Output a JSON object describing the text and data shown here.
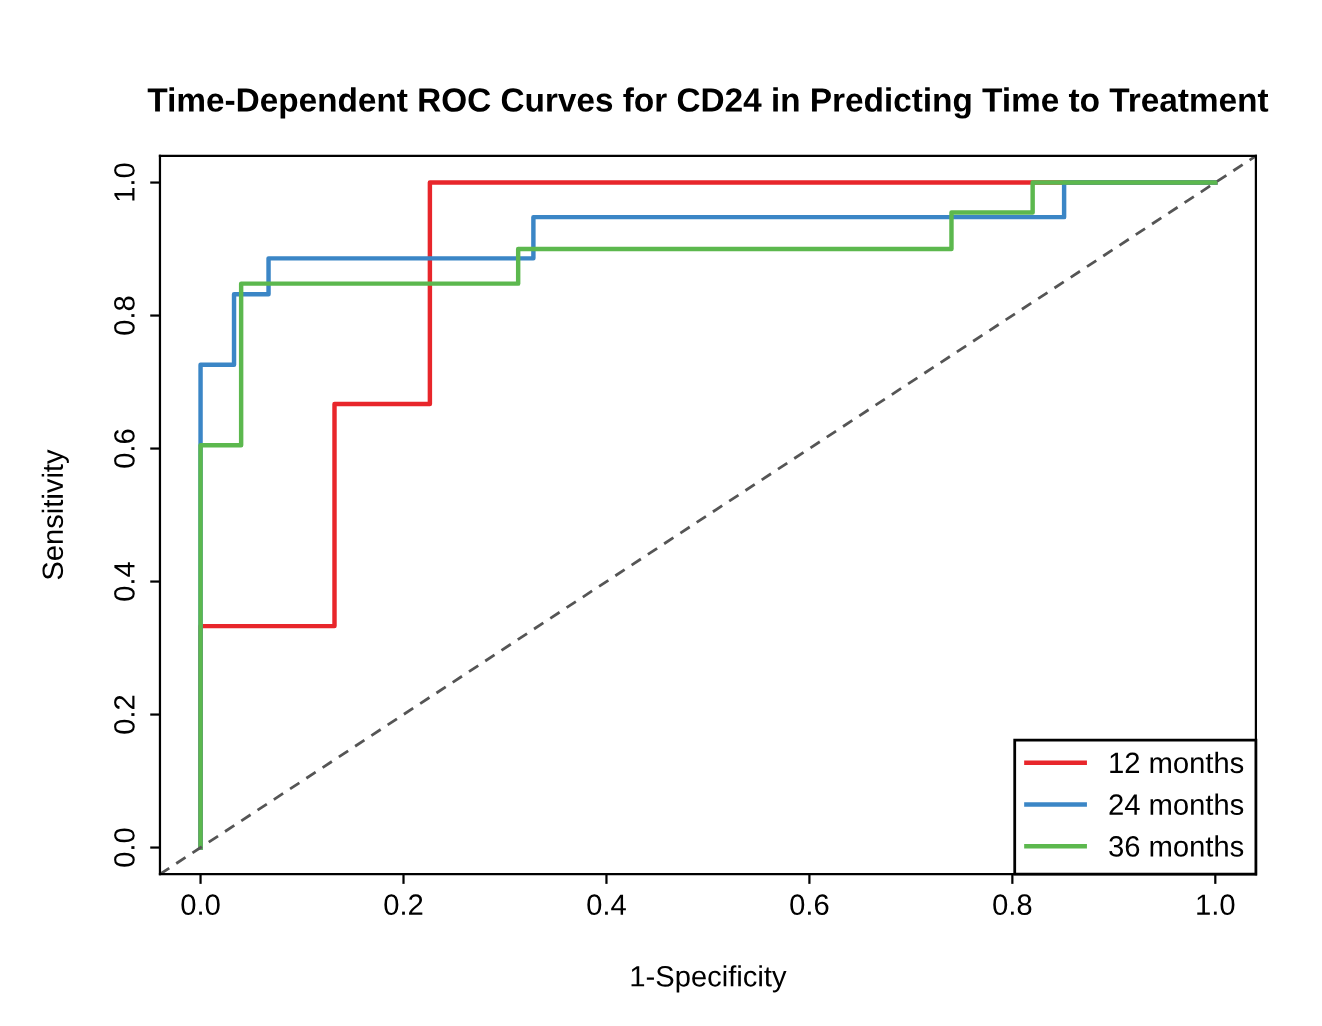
{
  "chart_data": {
    "type": "step",
    "title": "Time-Dependent ROC Curves for CD24 in Predicting Time to Treatment",
    "xlabel": "1-Specificity",
    "ylabel": "Sensitivity",
    "series": [
      {
        "name": "12 months",
        "color": "#e8262b",
        "x": [
          0,
          0,
          0.132,
          0.226,
          1.0
        ],
        "values": [
          0,
          0.333,
          0.667,
          1.0,
          1.0
        ]
      },
      {
        "name": "24 months",
        "color": "#3b86c6",
        "x": [
          0,
          0,
          0.033,
          0.067,
          0.328,
          0.851,
          1.0
        ],
        "values": [
          0,
          0.726,
          0.832,
          0.886,
          0.948,
          1.0,
          1.0
        ]
      },
      {
        "name": "36 months",
        "color": "#5cb84e",
        "x": [
          0,
          0,
          0.04,
          0.313,
          0.74,
          0.82,
          1.0
        ],
        "values": [
          0,
          0.605,
          0.848,
          0.9,
          0.955,
          1.0,
          1.0
        ]
      },
      {
        "type": "line",
        "color": "#555555",
        "line_style": "dashed",
        "x": [
          -0.04,
          1.04
        ],
        "values": [
          -0.04,
          1.04
        ]
      }
    ],
    "xlim": [
      -0.04,
      1.04
    ],
    "ylim": [
      -0.04,
      1.04
    ],
    "xticks": [
      {
        "value": 0,
        "label": "0.0"
      },
      0.2,
      0.4,
      0.6,
      0.8,
      {
        "value": 1,
        "label": "1.0"
      }
    ],
    "yticks": [
      {
        "value": 0,
        "label": "0.0"
      },
      0.2,
      0.4,
      0.6,
      0.8,
      {
        "value": 1,
        "label": "1.0"
      }
    ],
    "grid": false,
    "legend": "bottom right",
    "line_style": "solid"
  }
}
